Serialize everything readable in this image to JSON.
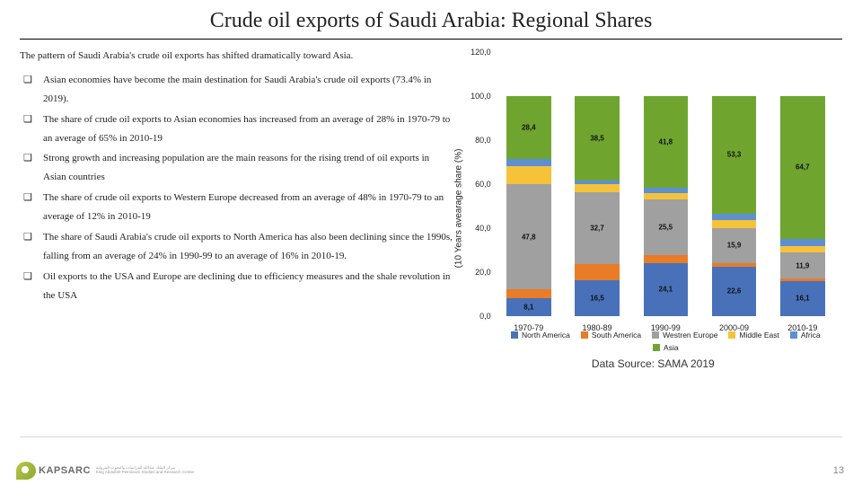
{
  "title": "Crude oil exports of Saudi Arabia: Regional Shares",
  "intro": "The pattern of Saudi Arabia's crude oil exports has shifted dramatically toward Asia.",
  "bullets": [
    "Asian economies have become the main destination for Saudi Arabia's crude oil exports (73.4% in 2019).",
    "The share of crude oil exports to Asian economies has increased from an average of 28% in 1970-79 to an average of 65% in 2010-19",
    "Strong growth and increasing population are the main reasons for the rising trend of oil exports in Asian countries",
    "The share of crude oil exports to Western Europe decreased from an average of 48% in 1970-79 to an average of 12% in 2010-19",
    "The share of Saudi Arabia's crude oil exports to North America has also been declining since the 1990s, falling from an average of 24% in 1990-99 to an average of 16% in 2010-19.",
    "Oil exports to the USA and Europe are declining due to efficiency measures and the shale revolution in the USA"
  ],
  "chart": {
    "type": "stacked-bar",
    "y_axis_label": "(10 Years avearage share (%)",
    "y_ticks": [
      "0,0",
      "20,0",
      "40,0",
      "60,0",
      "80,0",
      "100,0",
      "120,0"
    ],
    "y_max": 120,
    "categories": [
      "1970-79",
      "1980-89",
      "1990-99",
      "2000-09",
      "2010-19"
    ],
    "series": [
      {
        "name": "North America",
        "color": "#4871b9"
      },
      {
        "name": "South America",
        "color": "#e87c27"
      },
      {
        "name": "Westren Europe",
        "color": "#a0a0a0"
      },
      {
        "name": "Middle East",
        "color": "#f5c23a"
      },
      {
        "name": "Africa",
        "color": "#5d8fd1"
      },
      {
        "name": "Asia",
        "color": "#6fa52f"
      }
    ],
    "data": [
      {
        "north": 8.1,
        "south": 4.1,
        "weur": 47.8,
        "me": 8.0,
        "afr": 3.6,
        "asia": 28.4
      },
      {
        "north": 16.5,
        "south": 7.0,
        "weur": 32.7,
        "me": 4.0,
        "afr": 1.3,
        "asia": 38.5
      },
      {
        "north": 24.1,
        "south": 3.5,
        "weur": 25.5,
        "me": 3.0,
        "afr": 2.1,
        "asia": 41.8
      },
      {
        "north": 22.6,
        "south": 1.5,
        "weur": 15.9,
        "me": 3.6,
        "afr": 3.1,
        "asia": 53.3
      },
      {
        "north": 16.1,
        "south": 1.0,
        "weur": 11.9,
        "me": 3.0,
        "afr": 3.3,
        "asia": 64.7
      }
    ],
    "show_labels": {
      "0": {
        "north": "8,1",
        "weur": "47,8",
        "asia": "28,4"
      },
      "1": {
        "north": "16,5",
        "weur": "32,7",
        "asia": "38,5"
      },
      "2": {
        "north": "24,1",
        "weur": "25,5",
        "asia": "41,8"
      },
      "3": {
        "north": "22,6",
        "weur": "15,9",
        "asia": "53,3"
      },
      "4": {
        "north": "16,1",
        "weur": "11,9",
        "asia": "64,7"
      }
    },
    "data_source": "Data Source: SAMA 2019",
    "label_fontsize": 8,
    "axis_fontsize": 9
  },
  "footer": {
    "brand": "KAPSARC",
    "sub1": "King Abdullah Petroleum Studies and Research Center",
    "sub2": "مركز الملك عبدالله للدراسات والبحوث البترولية"
  },
  "page": "13"
}
